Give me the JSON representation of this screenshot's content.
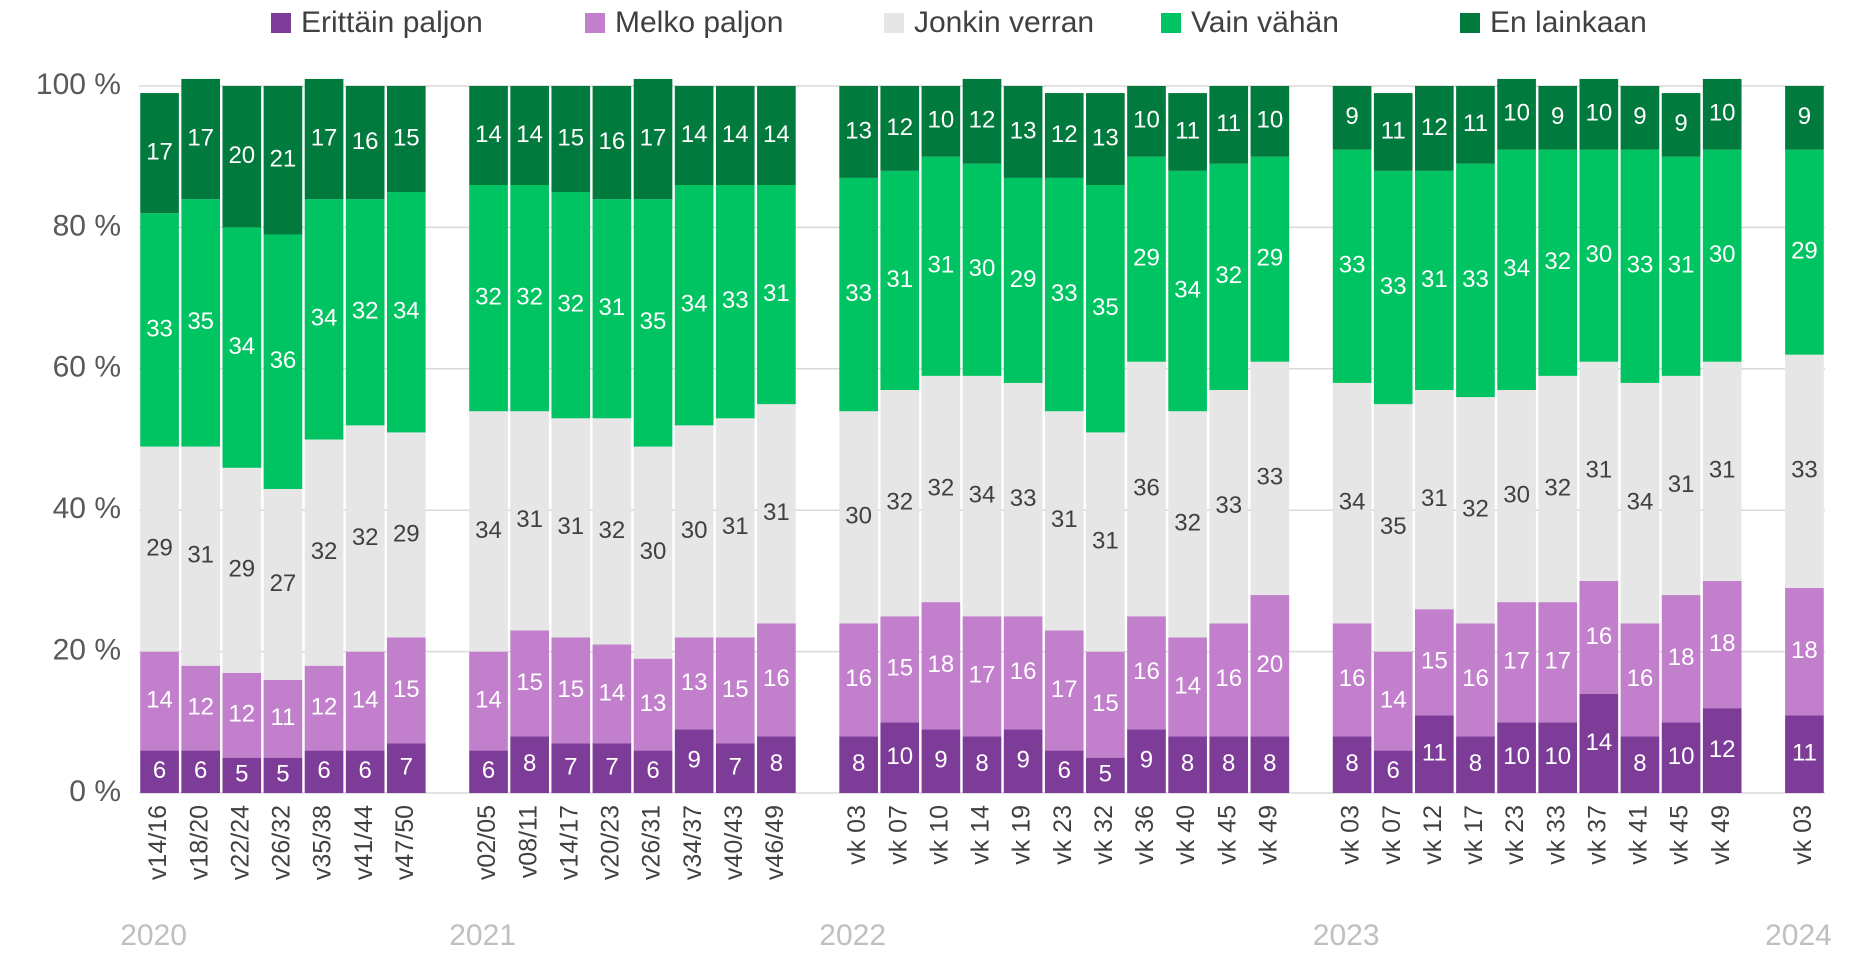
{
  "chart_data": {
    "type": "stacked_bar",
    "categories": [
      "v14/16",
      "v18/20",
      "v22/24",
      "v26/32",
      "v35/38",
      "v41/44",
      "v47/50",
      null,
      "v02/05",
      "v08/11",
      "v14/17",
      "v20/23",
      "v26/31",
      "v34/37",
      "v40/43",
      "v46/49",
      null,
      "vk 03",
      "vk 07",
      "vk 10",
      "vk 14",
      "vk 19",
      "vk 23",
      "vk 32",
      "vk 36",
      "vk 40",
      "vk 45",
      "vk 49",
      null,
      "vk 03",
      "vk 07",
      "vk 12",
      "vk 17",
      "vk 23",
      "vk 33",
      "vk 37",
      "vk 41",
      "vk 45",
      "vk 49",
      null,
      "vk 03"
    ],
    "group_labels": [
      "2020",
      "2021",
      "2022",
      "2023",
      "2024"
    ],
    "series": [
      {
        "name": "Erittäin paljon",
        "color": "#7d3c98",
        "label_color": "#ffffff",
        "values": [
          6,
          6,
          5,
          5,
          6,
          6,
          7,
          null,
          6,
          8,
          7,
          7,
          6,
          9,
          7,
          8,
          null,
          8,
          10,
          9,
          8,
          9,
          6,
          5,
          9,
          8,
          8,
          8,
          null,
          8,
          6,
          11,
          8,
          10,
          10,
          14,
          8,
          10,
          12,
          null,
          11
        ]
      },
      {
        "name": "Melko paljon",
        "color": "#c27fcc",
        "label_color": "#ffffff",
        "values": [
          14,
          12,
          12,
          11,
          12,
          14,
          15,
          null,
          14,
          15,
          15,
          14,
          13,
          13,
          15,
          16,
          null,
          16,
          15,
          18,
          17,
          16,
          17,
          15,
          16,
          14,
          16,
          20,
          null,
          16,
          14,
          15,
          16,
          17,
          17,
          16,
          16,
          18,
          18,
          null,
          18
        ]
      },
      {
        "name": "Jonkin verran",
        "color": "#e6e6e6",
        "label_color": "#404040",
        "values": [
          29,
          31,
          29,
          27,
          32,
          32,
          29,
          null,
          34,
          31,
          31,
          32,
          30,
          30,
          31,
          31,
          null,
          30,
          32,
          32,
          34,
          33,
          31,
          31,
          36,
          32,
          33,
          33,
          null,
          34,
          35,
          31,
          32,
          30,
          32,
          31,
          34,
          31,
          31,
          null,
          33
        ]
      },
      {
        "name": "Vain vähän",
        "color": "#00c462",
        "label_color": "#ffffff",
        "values": [
          33,
          35,
          34,
          36,
          34,
          32,
          34,
          null,
          32,
          32,
          32,
          31,
          35,
          34,
          33,
          31,
          null,
          33,
          31,
          31,
          30,
          29,
          33,
          35,
          29,
          34,
          32,
          29,
          null,
          33,
          33,
          31,
          33,
          34,
          32,
          30,
          33,
          31,
          30,
          null,
          29
        ]
      },
      {
        "name": "En lainkaan",
        "color": "#007a3d",
        "label_color": "#ffffff",
        "values": [
          17,
          17,
          20,
          21,
          17,
          16,
          15,
          null,
          14,
          14,
          15,
          16,
          17,
          14,
          14,
          14,
          null,
          13,
          12,
          10,
          12,
          13,
          12,
          13,
          10,
          11,
          11,
          10,
          null,
          9,
          11,
          12,
          11,
          10,
          9,
          10,
          9,
          9,
          10,
          null,
          9
        ]
      }
    ],
    "ylim": [
      0,
      100
    ],
    "yticks": [
      {
        "value": 0,
        "label": "0 %"
      },
      {
        "value": 20,
        "label": "20 %"
      },
      {
        "value": 40,
        "label": "40 %"
      },
      {
        "value": 60,
        "label": "60 %"
      },
      {
        "value": 80,
        "label": "80 %"
      },
      {
        "value": 100,
        "label": "100 %"
      }
    ],
    "grid": true,
    "legend": "top"
  }
}
